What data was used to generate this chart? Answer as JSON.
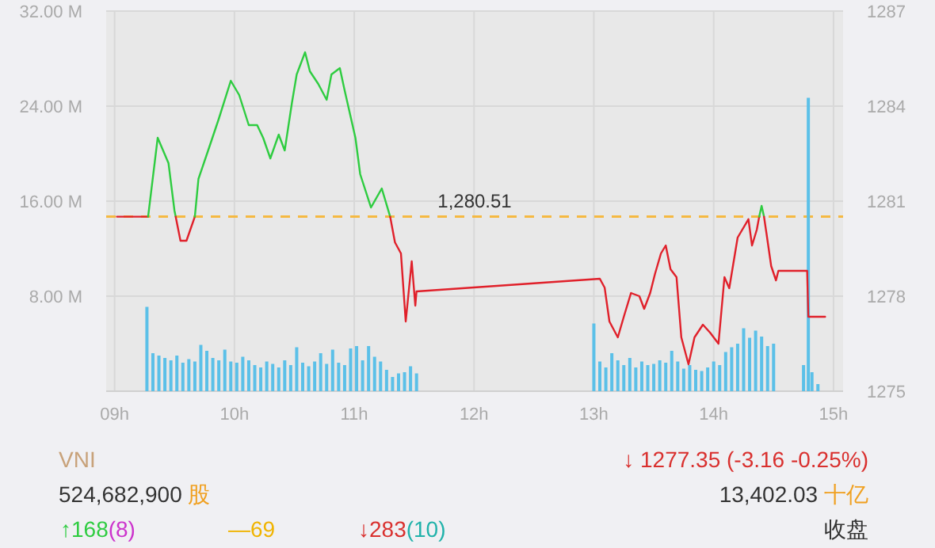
{
  "chart_data": {
    "type": "line",
    "xlim": [
      8.93,
      15.08
    ],
    "xticks": [
      {
        "value": 9,
        "label": "09h"
      },
      {
        "value": 10,
        "label": "10h"
      },
      {
        "value": 11,
        "label": "11h"
      },
      {
        "value": 12,
        "label": "12h"
      },
      {
        "value": 13,
        "label": "13h"
      },
      {
        "value": 14,
        "label": "14h"
      },
      {
        "value": 15,
        "label": "15h"
      }
    ],
    "ylim": [
      0,
      32000000
    ],
    "yticks": [
      {
        "value": 8000000,
        "label": "8.00 M"
      },
      {
        "value": 16000000,
        "label": "16.00 M"
      },
      {
        "value": 24000000,
        "label": "24.00 M"
      },
      {
        "value": 32000000,
        "label": "32.00 M"
      }
    ],
    "y2lim": [
      1275,
      1287
    ],
    "y2ticks": [
      1275,
      1278,
      1281,
      1284,
      1287
    ],
    "grid": true,
    "series": [
      {
        "type": "bar",
        "axis": "y",
        "color": "#5bc0e8",
        "x": [
          9.27,
          9.32,
          9.37,
          9.42,
          9.47,
          9.52,
          9.57,
          9.62,
          9.67,
          9.72,
          9.77,
          9.82,
          9.87,
          9.92,
          9.97,
          10.02,
          10.07,
          10.12,
          10.17,
          10.22,
          10.27,
          10.32,
          10.37,
          10.42,
          10.47,
          10.52,
          10.57,
          10.62,
          10.67,
          10.72,
          10.77,
          10.82,
          10.87,
          10.92,
          10.97,
          11.02,
          11.07,
          11.12,
          11.17,
          11.22,
          11.27,
          11.32,
          11.37,
          11.42,
          11.47,
          11.52,
          13.0,
          13.05,
          13.1,
          13.15,
          13.2,
          13.25,
          13.3,
          13.35,
          13.4,
          13.45,
          13.5,
          13.55,
          13.6,
          13.65,
          13.7,
          13.75,
          13.8,
          13.85,
          13.9,
          13.95,
          14.0,
          14.05,
          14.1,
          14.15,
          14.2,
          14.25,
          14.3,
          14.35,
          14.4,
          14.45,
          14.5,
          14.75,
          14.79,
          14.82,
          14.87
        ],
        "values": [
          7100000,
          3200000,
          3000000,
          2800000,
          2600000,
          3000000,
          2400000,
          2700000,
          2500000,
          3900000,
          3400000,
          2800000,
          2600000,
          3500000,
          2500000,
          2400000,
          2900000,
          2600000,
          2200000,
          2000000,
          2500000,
          2300000,
          2000000,
          2600000,
          2200000,
          3700000,
          2400000,
          2100000,
          2500000,
          3200000,
          2300000,
          3500000,
          2400000,
          2200000,
          3600000,
          3800000,
          2600000,
          3800000,
          2900000,
          2500000,
          1800000,
          1200000,
          1500000,
          1600000,
          2100000,
          1500000,
          5700000,
          2500000,
          2000000,
          3200000,
          2600000,
          2200000,
          2800000,
          2000000,
          2500000,
          2200000,
          2300000,
          2600000,
          2400000,
          3400000,
          2500000,
          1900000,
          2200000,
          1800000,
          1700000,
          2000000,
          2500000,
          2200000,
          3300000,
          3700000,
          4000000,
          5300000,
          4500000,
          5100000,
          4600000,
          3800000,
          4000000,
          2200000,
          24700000,
          1600000,
          600000
        ]
      },
      {
        "axis": "y2",
        "color": "#e0202a",
        "x": [
          9.02,
          9.28
        ],
        "values": [
          1280.51,
          1280.51
        ]
      },
      {
        "axis": "y2",
        "color": "#2ecc40",
        "x": [
          9.28,
          9.36,
          9.45,
          9.5,
          9.51
        ],
        "values": [
          1280.51,
          1283.0,
          1282.2,
          1280.7,
          1280.51
        ]
      },
      {
        "axis": "y2",
        "color": "#e0202a",
        "x": [
          9.51,
          9.55,
          9.6,
          9.67
        ],
        "values": [
          1280.51,
          1279.75,
          1279.75,
          1280.51
        ]
      },
      {
        "axis": "y2",
        "color": "#2ecc40",
        "x": [
          9.67,
          9.7,
          9.79,
          9.87,
          9.97,
          10.04,
          10.12,
          10.19,
          10.24,
          10.3,
          10.37,
          10.42,
          10.48,
          10.52,
          10.59,
          10.63,
          10.7,
          10.77,
          10.81,
          10.88,
          10.92,
          11.01,
          11.05,
          11.14,
          11.23,
          11.3
        ],
        "values": [
          1280.51,
          1281.7,
          1282.7,
          1283.6,
          1284.8,
          1284.35,
          1283.4,
          1283.4,
          1283.0,
          1282.35,
          1283.1,
          1282.6,
          1284.1,
          1285.0,
          1285.7,
          1285.1,
          1284.7,
          1284.2,
          1285.0,
          1285.2,
          1284.5,
          1283.0,
          1281.85,
          1280.8,
          1281.4,
          1280.51
        ]
      },
      {
        "axis": "y2",
        "color": "#e0202a",
        "x": [
          11.3,
          11.34,
          11.39,
          11.43,
          11.48,
          11.51,
          11.52,
          13.05,
          13.09,
          13.13,
          13.2,
          13.25,
          13.31,
          13.38,
          13.42,
          13.47,
          13.51,
          13.56,
          13.6,
          13.64,
          13.69,
          13.73,
          13.79,
          13.84,
          13.91,
          13.97,
          14.04,
          14.09,
          14.13,
          14.2,
          14.29,
          14.32,
          14.36,
          14.38
        ],
        "values": [
          1280.51,
          1279.7,
          1279.35,
          1277.2,
          1279.1,
          1277.7,
          1278.15,
          1278.55,
          1278.27,
          1277.2,
          1276.7,
          1277.35,
          1278.1,
          1278.0,
          1277.6,
          1278.1,
          1278.7,
          1279.35,
          1279.6,
          1278.85,
          1278.6,
          1276.7,
          1275.85,
          1276.7,
          1277.1,
          1276.85,
          1276.5,
          1278.6,
          1278.25,
          1279.85,
          1280.43,
          1279.6,
          1280.1,
          1280.51
        ]
      },
      {
        "axis": "y2",
        "color": "#2ecc40",
        "x": [
          14.38,
          14.4,
          14.42
        ],
        "values": [
          1280.51,
          1280.85,
          1280.51
        ]
      },
      {
        "axis": "y2",
        "color": "#e0202a",
        "x": [
          14.42,
          14.44,
          14.48,
          14.52,
          14.54,
          14.78,
          14.79,
          14.93
        ],
        "values": [
          1280.51,
          1280.0,
          1278.95,
          1278.5,
          1278.8,
          1278.8,
          1277.35,
          1277.35
        ]
      }
    ],
    "ref_lines": [
      {
        "axis": "y2",
        "value": 1280.51,
        "label": "1,280.51",
        "color": "#f5b942",
        "line_style": "dashed"
      }
    ],
    "annotations": [
      "VNI",
      "↓ 1277.35  (-3.16  -0.25%)",
      "524,682,900",
      "股",
      "13,402.03",
      "十亿",
      "↑168",
      "(8)",
      "—69",
      "↓283",
      "(10)",
      "收盘"
    ]
  }
}
